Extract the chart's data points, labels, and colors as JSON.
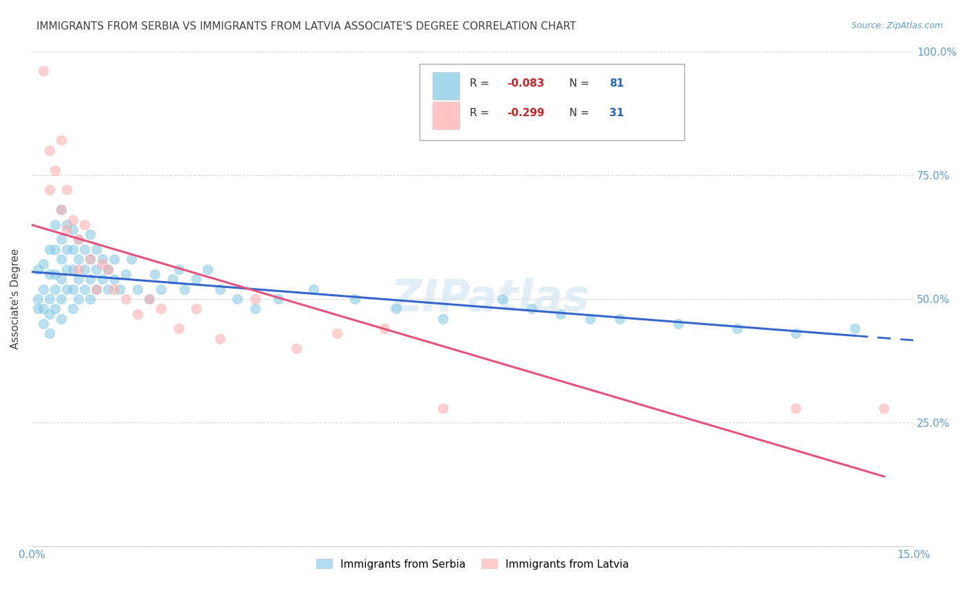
{
  "title": "IMMIGRANTS FROM SERBIA VS IMMIGRANTS FROM LATVIA ASSOCIATE'S DEGREE CORRELATION CHART",
  "source": "Source: ZipAtlas.com",
  "ylabel": "Associate's Degree",
  "y_ticks": [
    0.0,
    0.25,
    0.5,
    0.75,
    1.0
  ],
  "y_tick_labels": [
    "",
    "25.0%",
    "50.0%",
    "75.0%",
    "100.0%"
  ],
  "x_tick_labels": [
    "0.0%",
    "",
    "",
    "",
    "",
    "15.0%"
  ],
  "serbia_color": "#7ec8e3",
  "latvia_color": "#ffaaaa",
  "serbia_line_color": "#3366cc",
  "latvia_line_color": "#e8507a",
  "serbia_R": -0.083,
  "serbia_N": 81,
  "latvia_R": -0.299,
  "latvia_N": 31,
  "xlim": [
    0.0,
    0.15
  ],
  "ylim": [
    0.0,
    1.0
  ],
  "serbia_x": [
    0.001,
    0.001,
    0.001,
    0.002,
    0.002,
    0.002,
    0.002,
    0.003,
    0.003,
    0.003,
    0.003,
    0.003,
    0.004,
    0.004,
    0.004,
    0.004,
    0.004,
    0.005,
    0.005,
    0.005,
    0.005,
    0.005,
    0.005,
    0.006,
    0.006,
    0.006,
    0.006,
    0.007,
    0.007,
    0.007,
    0.007,
    0.007,
    0.008,
    0.008,
    0.008,
    0.008,
    0.009,
    0.009,
    0.009,
    0.01,
    0.01,
    0.01,
    0.01,
    0.011,
    0.011,
    0.011,
    0.012,
    0.012,
    0.013,
    0.013,
    0.014,
    0.014,
    0.015,
    0.016,
    0.017,
    0.018,
    0.02,
    0.021,
    0.022,
    0.024,
    0.025,
    0.026,
    0.028,
    0.03,
    0.032,
    0.035,
    0.038,
    0.042,
    0.048,
    0.055,
    0.062,
    0.07,
    0.08,
    0.085,
    0.09,
    0.095,
    0.1,
    0.11,
    0.12,
    0.13,
    0.14
  ],
  "serbia_y": [
    0.56,
    0.5,
    0.48,
    0.57,
    0.52,
    0.48,
    0.45,
    0.6,
    0.55,
    0.5,
    0.47,
    0.43,
    0.65,
    0.6,
    0.55,
    0.52,
    0.48,
    0.68,
    0.62,
    0.58,
    0.54,
    0.5,
    0.46,
    0.65,
    0.6,
    0.56,
    0.52,
    0.64,
    0.6,
    0.56,
    0.52,
    0.48,
    0.62,
    0.58,
    0.54,
    0.5,
    0.6,
    0.56,
    0.52,
    0.63,
    0.58,
    0.54,
    0.5,
    0.6,
    0.56,
    0.52,
    0.58,
    0.54,
    0.56,
    0.52,
    0.58,
    0.54,
    0.52,
    0.55,
    0.58,
    0.52,
    0.5,
    0.55,
    0.52,
    0.54,
    0.56,
    0.52,
    0.54,
    0.56,
    0.52,
    0.5,
    0.48,
    0.5,
    0.52,
    0.5,
    0.48,
    0.46,
    0.5,
    0.48,
    0.47,
    0.46,
    0.46,
    0.45,
    0.44,
    0.43,
    0.44
  ],
  "latvia_x": [
    0.002,
    0.003,
    0.003,
    0.004,
    0.005,
    0.005,
    0.006,
    0.006,
    0.007,
    0.008,
    0.008,
    0.009,
    0.01,
    0.011,
    0.012,
    0.013,
    0.014,
    0.016,
    0.018,
    0.02,
    0.022,
    0.025,
    0.028,
    0.032,
    0.038,
    0.045,
    0.052,
    0.06,
    0.07,
    0.13,
    0.145
  ],
  "latvia_y": [
    0.96,
    0.8,
    0.72,
    0.76,
    0.82,
    0.68,
    0.72,
    0.64,
    0.66,
    0.62,
    0.56,
    0.65,
    0.58,
    0.52,
    0.57,
    0.56,
    0.52,
    0.5,
    0.47,
    0.5,
    0.48,
    0.44,
    0.48,
    0.42,
    0.5,
    0.4,
    0.43,
    0.44,
    0.28,
    0.28,
    0.28
  ],
  "watermark_text": "ZIPatlas",
  "background_color": "#ffffff",
  "grid_color": "#cccccc",
  "axis_label_color": "#5b9bd5",
  "title_color": "#404040",
  "title_fontsize": 11,
  "source_fontsize": 9
}
